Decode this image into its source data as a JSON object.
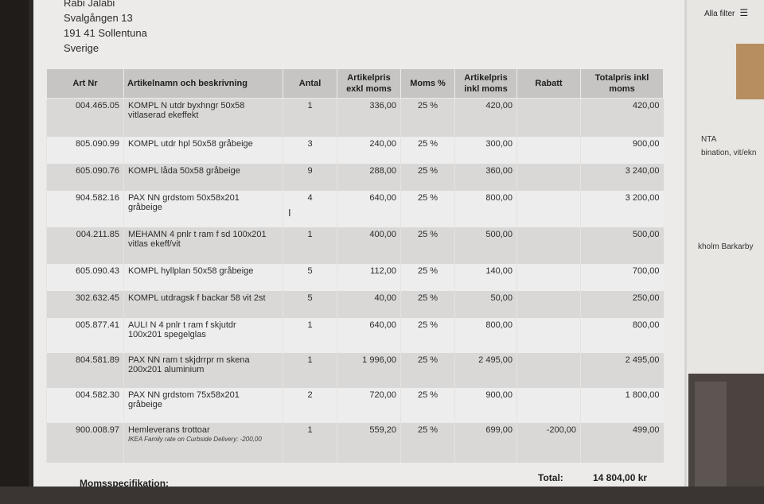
{
  "address": {
    "name": "Rabi Jalabi",
    "street": "Svalgången 13",
    "postal": "191 41 Sollentuna",
    "country": "Sverige"
  },
  "table": {
    "headers": {
      "art_nr": "Art Nr",
      "name": "Artikelnamn och beskrivning",
      "antal": "Antal",
      "price_excl_1": "Artikelpris",
      "price_excl_2": "exkl moms",
      "moms": "Moms %",
      "price_incl_1": "Artikelpris",
      "price_incl_2": "inkl moms",
      "rabatt": "Rabatt",
      "total_1": "Totalpris inkl",
      "total_2": "moms"
    },
    "rows": [
      {
        "art": "004.465.05",
        "name1": "KOMPL N utdr byxhngr 50x58",
        "name2": "vitlaserad ekeffekt",
        "qty": "1",
        "excl": "336,00",
        "moms": "25 %",
        "incl": "420,00",
        "rabatt": "",
        "total": "420,00",
        "note": ""
      },
      {
        "art": "805.090.99",
        "name1": "KOMPL utdr hpl 50x58 gråbeige",
        "name2": "",
        "qty": "3",
        "excl": "240,00",
        "moms": "25 %",
        "incl": "300,00",
        "rabatt": "",
        "total": "900,00",
        "note": ""
      },
      {
        "art": "605.090.76",
        "name1": "KOMPL låda 50x58 gråbeige",
        "name2": "",
        "qty": "9",
        "excl": "288,00",
        "moms": "25 %",
        "incl": "360,00",
        "rabatt": "",
        "total": "3 240,00",
        "note": ""
      },
      {
        "art": "904.582.16",
        "name1": "PAX NN grdstom 50x58x201",
        "name2": "gråbeige",
        "qty": "4",
        "excl": "640,00",
        "moms": "25 %",
        "incl": "800,00",
        "rabatt": "",
        "total": "3 200,00",
        "note": ""
      },
      {
        "art": "004.211.85",
        "name1": "MEHAMN 4 pnlr t ram f sd 100x201",
        "name2": "vitlas ekeff/vit",
        "qty": "1",
        "excl": "400,00",
        "moms": "25 %",
        "incl": "500,00",
        "rabatt": "",
        "total": "500,00",
        "note": ""
      },
      {
        "art": "605.090.43",
        "name1": "KOMPL hyllplan 50x58 gråbeige",
        "name2": "",
        "qty": "5",
        "excl": "112,00",
        "moms": "25 %",
        "incl": "140,00",
        "rabatt": "",
        "total": "700,00",
        "note": ""
      },
      {
        "art": "302.632.45",
        "name1": "KOMPL utdragsk f backar 58 vit 2st",
        "name2": "",
        "qty": "5",
        "excl": "40,00",
        "moms": "25 %",
        "incl": "50,00",
        "rabatt": "",
        "total": "250,00",
        "note": ""
      },
      {
        "art": "005.877.41",
        "name1": "AULI N 4 pnlr t ram f skjutdr",
        "name2": "100x201 spegelglas",
        "qty": "1",
        "excl": "640,00",
        "moms": "25 %",
        "incl": "800,00",
        "rabatt": "",
        "total": "800,00",
        "note": ""
      },
      {
        "art": "804.581.89",
        "name1": "PAX NN ram t skjdrrpr m skena",
        "name2": "200x201 aluminium",
        "qty": "1",
        "excl": "1 996,00",
        "moms": "25 %",
        "incl": "2 495,00",
        "rabatt": "",
        "total": "2 495,00",
        "note": ""
      },
      {
        "art": "004.582.30",
        "name1": "PAX NN grdstom 75x58x201",
        "name2": "gråbeige",
        "qty": "2",
        "excl": "720,00",
        "moms": "25 %",
        "incl": "900,00",
        "rabatt": "",
        "total": "1 800,00",
        "note": ""
      },
      {
        "art": "900.008.97",
        "name1": "Hemleverans trottoar",
        "name2": "",
        "qty": "1",
        "excl": "559,20",
        "moms": "25 %",
        "incl": "699,00",
        "rabatt": "-200,00",
        "total": "499,00",
        "note": "IKEA Family rate on Curbside Delivery: -200,00"
      }
    ]
  },
  "footer": {
    "moms_label": "Momsspecifikation:",
    "total_label": "Total:",
    "total_value": "14 804,00 kr"
  },
  "background": {
    "filter_label": "Alla filter",
    "text1": "NTA",
    "text2": "bination, vit/ekn",
    "text3": "kholm Barkarby"
  }
}
